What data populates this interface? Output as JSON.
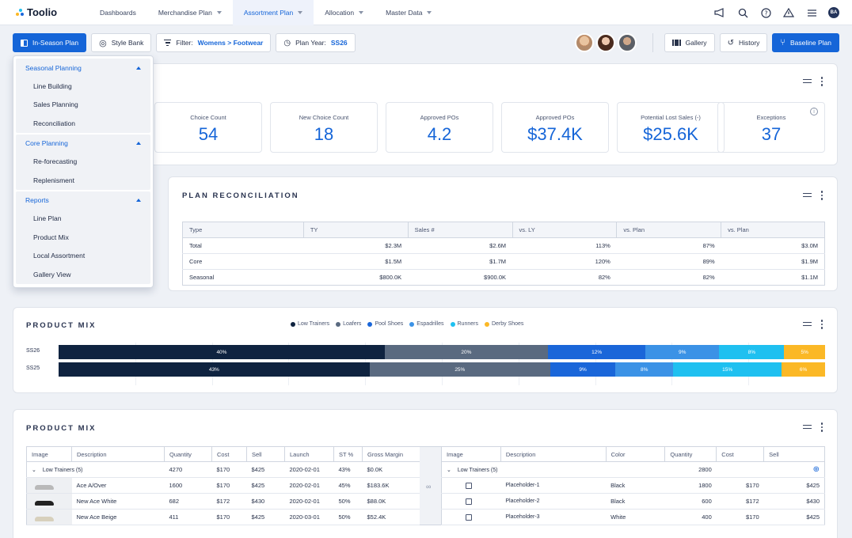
{
  "app": {
    "name": "Toolio"
  },
  "nav": {
    "items": [
      {
        "label": "Dashboards",
        "caret": false,
        "active": false
      },
      {
        "label": "Merchandise Plan",
        "caret": true,
        "active": false
      },
      {
        "label": "Assortment Plan",
        "caret": true,
        "active": true
      },
      {
        "label": "Allocation",
        "caret": true,
        "active": false
      },
      {
        "label": "Master Data",
        "caret": true,
        "active": false
      }
    ],
    "user_initials": "BA"
  },
  "toolbar": {
    "in_season_plan": "In-Season Plan",
    "style_bank": "Style Bank",
    "filter_label": "Filter:",
    "filter_value": "Womens > Footwear",
    "plan_year_label": "Plan Year:",
    "plan_year_value": "SS26",
    "gallery": "Gallery",
    "history": "History",
    "baseline_plan": "Baseline Plan"
  },
  "dropdown": {
    "groups": [
      {
        "label": "Seasonal Planning",
        "items": [
          "Line Building",
          "Sales Planning",
          "Reconciliation"
        ]
      },
      {
        "label": "Core Planning",
        "items": [
          "Re-forecasting",
          "Replenisment"
        ]
      },
      {
        "label": "Reports",
        "items": [
          "Line Plan",
          "Product Mix",
          "Local Assortment",
          "Gallery View"
        ]
      }
    ]
  },
  "kpis": [
    {
      "label": "Choice Count",
      "value": "54"
    },
    {
      "label": "New Choice Count",
      "value": "18"
    },
    {
      "label": "Approved POs",
      "value": "4.2"
    },
    {
      "label": "Approved POs",
      "value": "$37.4K"
    },
    {
      "label": "Potential Lost Sales (-)",
      "value": "$25.6K"
    },
    {
      "label": "Exceptions",
      "value": "37"
    }
  ],
  "reconciliation": {
    "title": "PLAN RECONCILIATION",
    "columns": [
      "Type",
      "TY",
      "Sales #",
      "vs. LY",
      "vs. Plan",
      "vs. Plan"
    ],
    "rows": [
      [
        "Total",
        "$2.3M",
        "$2.6M",
        "113%",
        "87%",
        "$3.0M"
      ],
      [
        "Core",
        "$1.5M",
        "$1.7M",
        "120%",
        "89%",
        "$1.9M"
      ],
      [
        "Seasonal",
        "$800.0K",
        "$900.0K",
        "82%",
        "82%",
        "$1.1M"
      ]
    ]
  },
  "product_mix_chart": {
    "title": "PRODUCT MIX",
    "colors": {
      "Low Trainers": "#0f2340",
      "Loafers": "#5a6a80",
      "Pool Shoes": "#1a66d9",
      "Espadrilles": "#3b92e6",
      "Runners": "#1fc0f0",
      "Derby Shoes": "#fbb826"
    },
    "chart_data": {
      "type": "bar",
      "stacked": true,
      "orientation": "horizontal",
      "categories": [
        "SS26",
        "SS25"
      ],
      "series": [
        {
          "name": "Low Trainers",
          "values": [
            40,
            43
          ]
        },
        {
          "name": "Loafers",
          "values": [
            20,
            25
          ]
        },
        {
          "name": "Pool Shoes",
          "values": [
            12,
            9
          ]
        },
        {
          "name": "Espadrilles",
          "values": [
            9,
            8
          ]
        },
        {
          "name": "Runners",
          "values": [
            8,
            15
          ]
        },
        {
          "name": "Derby Shoes",
          "values": [
            5,
            6
          ]
        }
      ],
      "legend": "top-center"
    }
  },
  "product_table": {
    "title": "PRODUCT MIX",
    "left_columns": [
      "Image",
      "Description",
      "Quantity",
      "Cost",
      "Sell",
      "Launch",
      "ST %",
      "Gross Margin"
    ],
    "left_group": {
      "label": "Low Trainers (5)",
      "quantity": "4270",
      "cost": "$170",
      "sell": "$425",
      "launch": "2020-02-01",
      "st": "43%",
      "gm": "$0.0K"
    },
    "left_rows": [
      {
        "desc": "Ace A/Over",
        "qty": "1600",
        "cost": "$170",
        "sell": "$425",
        "launch": "2020-02-01",
        "st": "45%",
        "gm": "$183.6K",
        "shoe_color": "#b9b9b9"
      },
      {
        "desc": "New Ace White",
        "qty": "682",
        "cost": "$172",
        "sell": "$430",
        "launch": "2020-02-01",
        "st": "50%",
        "gm": "$88.0K",
        "shoe_color": "#222222"
      },
      {
        "desc": "New Ace Beige",
        "qty": "411",
        "cost": "$170",
        "sell": "$425",
        "launch": "2020-03-01",
        "st": "50%",
        "gm": "$52.4K",
        "shoe_color": "#d7d0bc"
      }
    ],
    "right_columns": [
      "Image",
      "Description",
      "Color",
      "Quantity",
      "Cost",
      "Sell"
    ],
    "right_group": {
      "label": "Low Trainers (5)",
      "quantity": "2800"
    },
    "right_rows": [
      {
        "desc": "Placeholder-1",
        "color": "Black",
        "qty": "1800",
        "cost": "$170",
        "sell": "$425"
      },
      {
        "desc": "Placeholder-2",
        "color": "Black",
        "qty": "600",
        "cost": "$172",
        "sell": "$430"
      },
      {
        "desc": "Placeholder-3",
        "color": "White",
        "qty": "400",
        "cost": "$170",
        "sell": "$425"
      }
    ]
  }
}
